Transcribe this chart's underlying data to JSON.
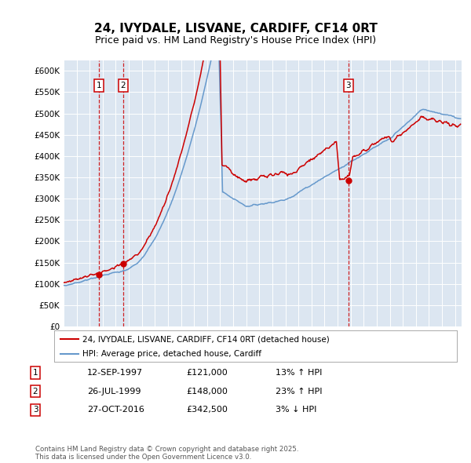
{
  "title": "24, IVYDALE, LISVANE, CARDIFF, CF14 0RT",
  "subtitle": "Price paid vs. HM Land Registry's House Price Index (HPI)",
  "background_color": "#ffffff",
  "plot_bg_color": "#dce6f1",
  "grid_color": "#ffffff",
  "ylim": [
    0,
    625000
  ],
  "yticks": [
    0,
    50000,
    100000,
    150000,
    200000,
    250000,
    300000,
    350000,
    400000,
    450000,
    500000,
    550000,
    600000
  ],
  "ytick_labels": [
    "£0",
    "£50K",
    "£100K",
    "£150K",
    "£200K",
    "£250K",
    "£300K",
    "£350K",
    "£400K",
    "£450K",
    "£500K",
    "£550K",
    "£600K"
  ],
  "xlim_start": 1995.0,
  "xlim_end": 2025.5,
  "sale_color": "#cc0000",
  "hpi_color": "#6699cc",
  "sale_label": "24, IVYDALE, LISVANE, CARDIFF, CF14 0RT (detached house)",
  "hpi_label": "HPI: Average price, detached house, Cardiff",
  "transaction1_date": 1997.7,
  "transaction1_price": 121000,
  "transaction1_label": "1",
  "transaction2_date": 1999.57,
  "transaction2_price": 148000,
  "transaction2_label": "2",
  "transaction3_date": 2016.83,
  "transaction3_price": 342500,
  "transaction3_label": "3",
  "legend_entries": [
    {
      "date": "12-SEP-1997",
      "price": "£121,000",
      "change": "13% ↑ HPI",
      "num": "1"
    },
    {
      "date": "26-JUL-1999",
      "price": "£148,000",
      "change": "23% ↑ HPI",
      "num": "2"
    },
    {
      "date": "27-OCT-2016",
      "price": "£342,500",
      "change": "3% ↓ HPI",
      "num": "3"
    }
  ],
  "footnote": "Contains HM Land Registry data © Crown copyright and database right 2025.\nThis data is licensed under the Open Government Licence v3.0.",
  "title_fontsize": 11,
  "subtitle_fontsize": 9,
  "tick_fontsize": 7.5,
  "legend_fontsize": 7.5
}
